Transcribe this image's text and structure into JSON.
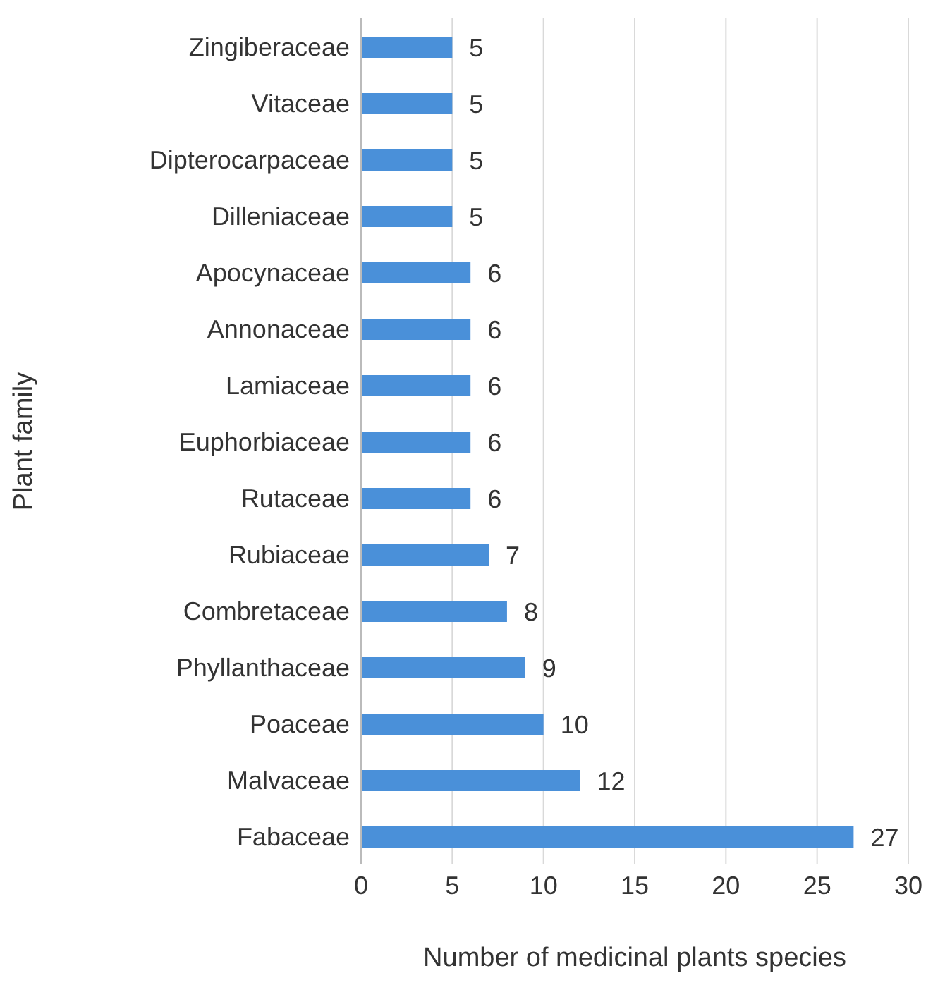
{
  "chart_data": {
    "type": "bar",
    "orientation": "horizontal",
    "xlabel": "Number of medicinal plants species",
    "ylabel": "Plant family",
    "categories": [
      "Zingiberaceae",
      "Vitaceae",
      "Dipterocarpaceae",
      "Dilleniaceae",
      "Apocynaceae",
      "Annonaceae",
      "Lamiaceae",
      "Euphorbiaceae",
      "Rutaceae",
      "Rubiaceae",
      "Combretaceae",
      "Phyllanthaceae",
      "Poaceae",
      "Malvaceae",
      "Fabaceae"
    ],
    "values": [
      5,
      5,
      5,
      5,
      6,
      6,
      6,
      6,
      6,
      7,
      8,
      9,
      10,
      12,
      27
    ],
    "color": "#4a90d9",
    "xlim": [
      0,
      30
    ],
    "xticks": [
      0,
      5,
      10,
      15,
      20,
      25,
      30
    ],
    "grid": "x",
    "data_labels": true
  }
}
